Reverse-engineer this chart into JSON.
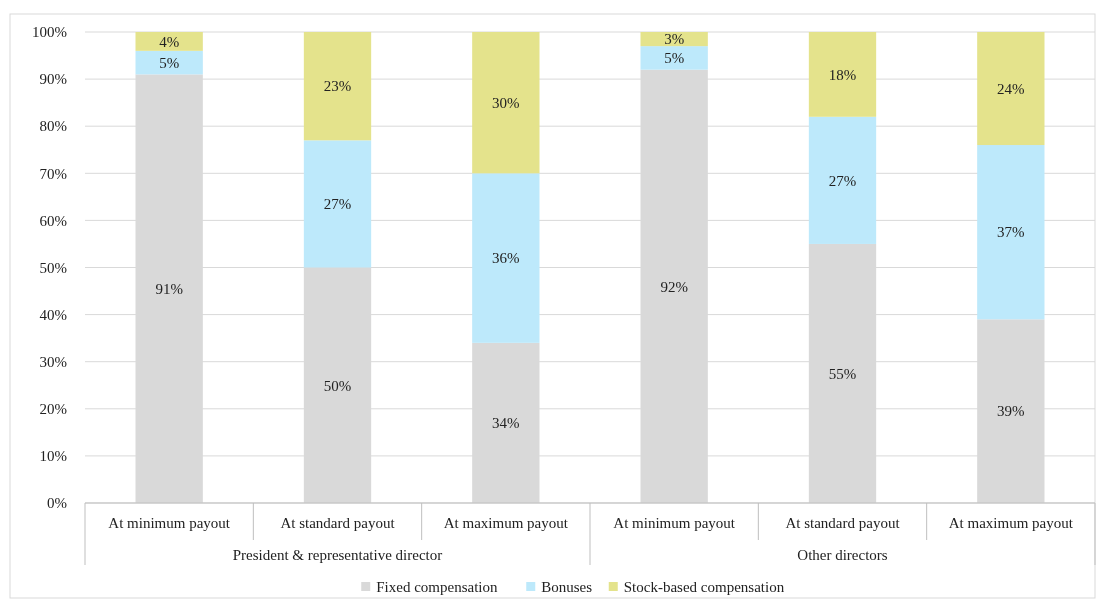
{
  "chart_data": {
    "type": "bar",
    "stacked": true,
    "categories": [
      "At minimum payout",
      "At standard payout",
      "At maximum payout",
      "At minimum payout",
      "At standard payout",
      "At maximum payout"
    ],
    "series": [
      {
        "name": "Fixed compensation",
        "color": "#d9d9d9",
        "values": [
          91,
          50,
          34,
          92,
          55,
          39
        ],
        "value_labels": [
          "91%",
          "50%",
          "34%",
          "92%",
          "55%",
          "39%"
        ]
      },
      {
        "name": "Bonuses",
        "color": "#bde9fb",
        "values": [
          5,
          27,
          36,
          5,
          27,
          37
        ],
        "value_labels": [
          "5%",
          "27%",
          "36%",
          "5%",
          "27%",
          "37%"
        ]
      },
      {
        "name": "Stock-based compensation",
        "color": "#e4e38c",
        "values": [
          4,
          23,
          30,
          3,
          18,
          24
        ],
        "value_labels": [
          "4%",
          "23%",
          "30%",
          "3%",
          "18%",
          "24%"
        ]
      }
    ],
    "ylim": [
      0,
      100
    ],
    "yticks": [
      {
        "value": 0,
        "label": "0%"
      },
      {
        "value": 10,
        "label": "10%"
      },
      {
        "value": 20,
        "label": "20%"
      },
      {
        "value": 30,
        "label": "30%"
      },
      {
        "value": 40,
        "label": "40%"
      },
      {
        "value": 50,
        "label": "50%"
      },
      {
        "value": 60,
        "label": "60%"
      },
      {
        "value": 70,
        "label": "70%"
      },
      {
        "value": 80,
        "label": "80%"
      },
      {
        "value": 90,
        "label": "90%"
      },
      {
        "value": 100,
        "label": "100%"
      }
    ],
    "annotations": [
      "President & representative director",
      "Other directors"
    ],
    "grid": "y",
    "legend": "bottom"
  }
}
